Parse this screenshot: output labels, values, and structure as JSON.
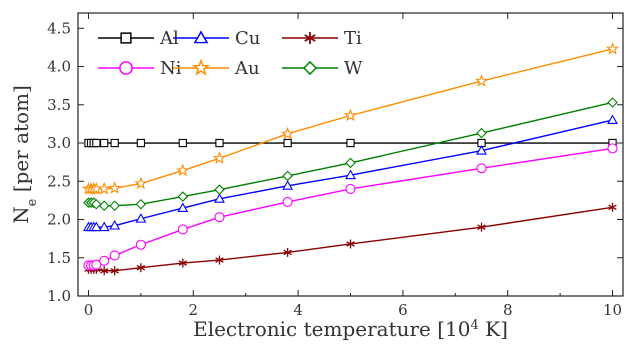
{
  "chart_data": {
    "type": "line",
    "xlabel": "Electronic temperature [10",
    "xlabel_sup": "4",
    "xlabel_end": " K]",
    "ylabel": "N",
    "ylabel_sub": "e",
    "ylabel_end": " [per atom]",
    "xlim": [
      -0.2,
      10.2
    ],
    "ylim": [
      1.0,
      4.7
    ],
    "xticks": [
      0,
      2,
      4,
      6,
      8,
      10
    ],
    "yticks": [
      1.0,
      1.5,
      2.0,
      2.5,
      3.0,
      3.5,
      4.0,
      4.5
    ],
    "xtick_labels": [
      "0",
      "2",
      "4",
      "6",
      "8",
      "10"
    ],
    "ytick_labels": [
      "1.0",
      "1.5",
      "2.0",
      "2.5",
      "3.0",
      "3.5",
      "4.0",
      "4.5"
    ],
    "legend_position": "top-left",
    "series": [
      {
        "name": "Al",
        "color": "#000000",
        "marker": "square",
        "x": [
          0.0,
          0.05,
          0.1,
          0.15,
          0.3,
          0.5,
          1.0,
          1.8,
          2.5,
          3.8,
          5.0,
          7.5,
          10.0
        ],
        "y": [
          3.0,
          3.0,
          3.0,
          3.0,
          3.0,
          3.0,
          3.0,
          3.0,
          3.0,
          3.0,
          3.0,
          3.0,
          3.0
        ]
      },
      {
        "name": "Cu",
        "color": "#0000ff",
        "marker": "triangle",
        "x": [
          0.0,
          0.05,
          0.1,
          0.15,
          0.3,
          0.5,
          1.0,
          1.8,
          2.5,
          3.8,
          5.0,
          7.5,
          10.0
        ],
        "y": [
          1.9,
          1.9,
          1.9,
          1.9,
          1.9,
          1.92,
          2.01,
          2.15,
          2.27,
          2.44,
          2.58,
          2.9,
          3.3
        ]
      },
      {
        "name": "Ti",
        "color": "#8b0000",
        "marker": "star6",
        "x": [
          0.0,
          0.05,
          0.1,
          0.15,
          0.3,
          0.5,
          1.0,
          1.8,
          2.5,
          3.8,
          5.0,
          7.5,
          10.0
        ],
        "y": [
          1.35,
          1.35,
          1.35,
          1.35,
          1.33,
          1.33,
          1.37,
          1.43,
          1.47,
          1.57,
          1.68,
          1.9,
          2.16
        ]
      },
      {
        "name": "Ni",
        "color": "#ff00ff",
        "marker": "circle",
        "x": [
          0.0,
          0.05,
          0.1,
          0.15,
          0.3,
          0.5,
          1.0,
          1.8,
          2.5,
          3.8,
          5.0,
          7.5,
          10.0
        ],
        "y": [
          1.4,
          1.4,
          1.4,
          1.41,
          1.46,
          1.53,
          1.67,
          1.87,
          2.03,
          2.23,
          2.4,
          2.67,
          2.93
        ]
      },
      {
        "name": "Au",
        "color": "#ff8c00",
        "marker": "star5",
        "x": [
          0.0,
          0.05,
          0.1,
          0.15,
          0.3,
          0.5,
          1.0,
          1.8,
          2.5,
          3.8,
          5.0,
          7.5,
          10.0
        ],
        "y": [
          2.4,
          2.4,
          2.4,
          2.4,
          2.4,
          2.41,
          2.47,
          2.64,
          2.8,
          3.12,
          3.36,
          3.81,
          4.23
        ]
      },
      {
        "name": "W",
        "color": "#008000",
        "marker": "diamond",
        "x": [
          0.0,
          0.05,
          0.1,
          0.15,
          0.3,
          0.5,
          1.0,
          1.8,
          2.5,
          3.8,
          5.0,
          7.5,
          10.0
        ],
        "y": [
          2.22,
          2.22,
          2.22,
          2.2,
          2.18,
          2.18,
          2.2,
          2.3,
          2.39,
          2.57,
          2.74,
          3.13,
          3.53
        ]
      }
    ]
  }
}
